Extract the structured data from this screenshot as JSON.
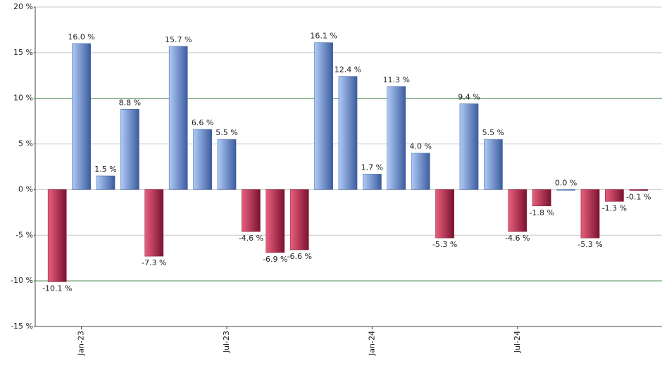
{
  "chart_data": {
    "type": "bar",
    "categories": [
      null,
      "Jan-23",
      null,
      null,
      null,
      null,
      null,
      "Jul-23",
      null,
      null,
      null,
      null,
      null,
      "Jan-24",
      null,
      null,
      null,
      null,
      null,
      "Jul-24",
      null,
      null,
      null,
      null,
      null
    ],
    "values": [
      -10.1,
      16.0,
      1.5,
      8.8,
      -7.3,
      15.7,
      6.6,
      5.5,
      -4.6,
      -6.9,
      -6.6,
      16.1,
      12.4,
      1.7,
      11.3,
      4.0,
      -5.3,
      9.4,
      5.5,
      -4.6,
      -1.8,
      0.0,
      -5.3,
      -1.3,
      -0.1
    ],
    "value_labels": [
      "-10.1 %",
      "16.0 %",
      "1.5 %",
      "8.8 %",
      "-7.3 %",
      "15.7 %",
      "6.6 %",
      "5.5 %",
      "-4.6 %",
      "-6.9 %",
      "-6.6 %",
      "16.1 %",
      "12.4 %",
      "1.7 %",
      "11.3 %",
      "4.0 %",
      "-5.3 %",
      "9.4 %",
      "5.5 %",
      "-4.6 %",
      "-1.8 %",
      "0.0 %",
      "-5.3 %",
      "-1.3 %",
      "-0.1 %"
    ],
    "positive_color": [
      "#b0cbf7",
      "#3c5c9e"
    ],
    "negative_color": [
      "#e8607e",
      "#7a1230"
    ],
    "ylim": [
      -15,
      20
    ],
    "yticks": [
      {
        "value": -15,
        "label": "-15 %"
      },
      {
        "value": -10,
        "label": "-10 %"
      },
      {
        "value": -5,
        "label": "-5 %"
      },
      {
        "value": 0,
        "label": "0 %"
      },
      {
        "value": 5,
        "label": "5 %"
      },
      {
        "value": 10,
        "label": "10 %"
      },
      {
        "value": 15,
        "label": "15 %"
      },
      {
        "value": 20,
        "label": "20 %"
      }
    ],
    "grid": true,
    "grid_colors": [
      "#c8c8c8",
      "#2e7d32",
      "#c8c8c8",
      "#c8c8c8",
      "#c8c8c8",
      "#2e7d32",
      "#c8c8c8",
      "#c8c8c8"
    ]
  }
}
